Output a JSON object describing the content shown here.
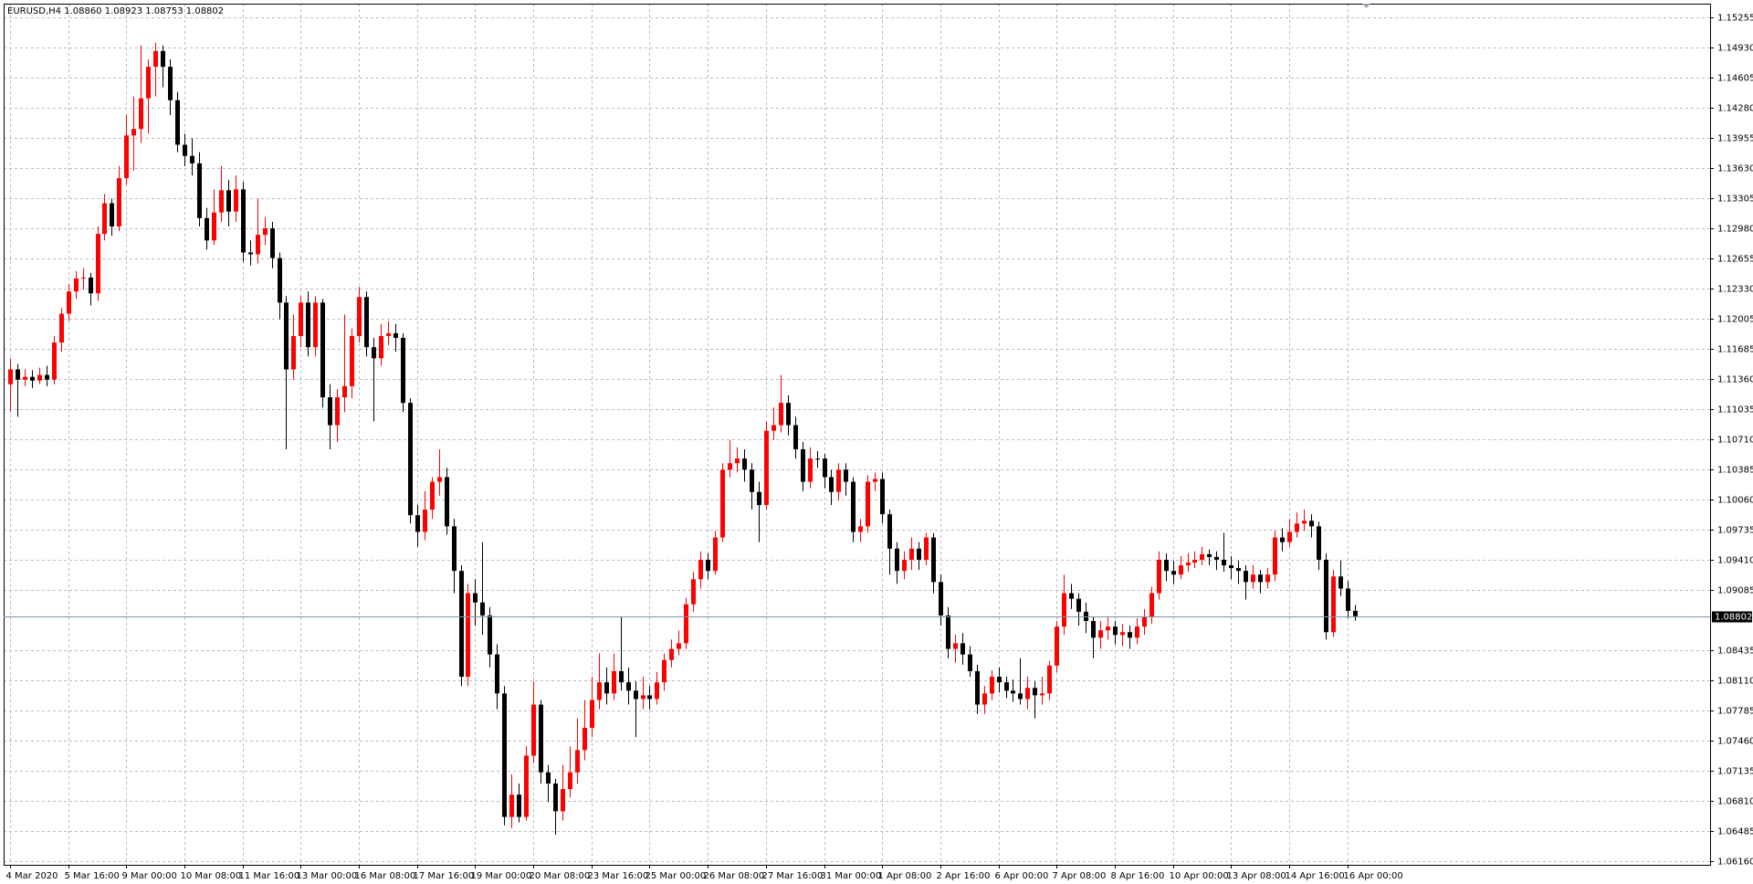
{
  "chart_data": {
    "type": "candlestick",
    "title": "EURUSD,H4  1.08860 1.08923 1.08753 1.08802",
    "categories": [
      "4 Mar 2020",
      null,
      null,
      null,
      null,
      null,
      null,
      null,
      "5 Mar 16:00",
      null,
      null,
      null,
      null,
      null,
      null,
      null,
      "9 Mar 00:00",
      null,
      null,
      null,
      null,
      null,
      null,
      null,
      "10 Mar 08:00",
      null,
      null,
      null,
      null,
      null,
      null,
      null,
      "11 Mar 16:00",
      null,
      null,
      null,
      null,
      null,
      null,
      null,
      "13 Mar 00:00",
      null,
      null,
      null,
      null,
      null,
      null,
      null,
      "16 Mar 08:00",
      null,
      null,
      null,
      null,
      null,
      null,
      null,
      "17 Mar 16:00",
      null,
      null,
      null,
      null,
      null,
      null,
      null,
      "19 Mar 00:00",
      null,
      null,
      null,
      null,
      null,
      null,
      null,
      "20 Mar 08:00",
      null,
      null,
      null,
      null,
      null,
      null,
      null,
      "23 Mar 16:00",
      null,
      null,
      null,
      null,
      null,
      null,
      null,
      "25 Mar 00:00",
      null,
      null,
      null,
      null,
      null,
      null,
      null,
      "26 Mar 08:00",
      null,
      null,
      null,
      null,
      null,
      null,
      null,
      "27 Mar 16:00",
      null,
      null,
      null,
      null,
      null,
      null,
      null,
      "31 Mar 00:00",
      null,
      null,
      null,
      null,
      null,
      null,
      null,
      "1 Apr 08:00",
      null,
      null,
      null,
      null,
      null,
      null,
      null,
      "2 Apr 16:00",
      null,
      null,
      null,
      null,
      null,
      null,
      null,
      "6 Apr 00:00",
      null,
      null,
      null,
      null,
      null,
      null,
      null,
      "7 Apr 08:00",
      null,
      null,
      null,
      null,
      null,
      null,
      null,
      "8 Apr 16:00",
      null,
      null,
      null,
      null,
      null,
      null,
      null,
      "10 Apr 00:00",
      null,
      null,
      null,
      null,
      null,
      null,
      null,
      "13 Apr 08:00",
      null,
      null,
      null,
      null,
      null,
      null,
      null,
      "14 Apr 16:00",
      null,
      null,
      null,
      null,
      null,
      null,
      null,
      "16 Apr 00:00",
      null
    ],
    "open": [
      1.113,
      1.1146,
      1.1135,
      1.1138,
      1.1134,
      1.114,
      1.1135,
      1.1175,
      1.1206,
      1.123,
      1.1244,
      1.1245,
      1.1228,
      1.1292,
      1.1325,
      1.13,
      1.1352,
      1.1398,
      1.1405,
      1.1438,
      1.1472,
      1.1489,
      1.1472,
      1.1436,
      1.1388,
      1.1376,
      1.1368,
      1.1309,
      1.1285,
      1.1315,
      1.1339,
      1.1316,
      1.134,
      1.1272,
      1.127,
      1.1291,
      1.1298,
      1.1266,
      1.1218,
      1.1146,
      1.1182,
      1.1218,
      1.117,
      1.1218,
      1.1116,
      1.1086,
      1.1116,
      1.1128,
      1.1182,
      1.1224,
      1.117,
      1.1158,
      1.1182,
      1.1185,
      1.118,
      1.111,
      1.0989,
      1.0971,
      1.0995,
      1.1025,
      1.103,
      1.0977,
      1.0929,
      1.0815,
      1.0905,
      1.0895,
      1.0881,
      1.0839,
      1.0797,
      1.0664,
      1.0688,
      1.0664,
      1.073,
      1.0785,
      1.0712,
      1.07,
      1.067,
      1.0694,
      1.0712,
      1.0736,
      1.076,
      1.079,
      1.0809,
      1.0797,
      1.0821,
      1.0809,
      1.08,
      1.0791,
      1.0795,
      1.0791,
      1.0809,
      1.0833,
      1.0845,
      1.0851,
      1.0893,
      1.092,
      1.0941,
      1.0929,
      1.0965,
      1.1038,
      1.1045,
      1.105,
      1.1038,
      1.1014,
      1.1,
      1.108,
      1.1086,
      1.111,
      1.1086,
      1.106,
      1.1025,
      1.105,
      1.105,
      1.103,
      1.1014,
      1.1038,
      1.1025,
      1.0971,
      1.0977,
      1.1025,
      1.1028,
      1.099,
      1.0953,
      1.0929,
      1.0941,
      1.0953,
      1.0941,
      1.0965,
      1.0917,
      1.0881,
      1.0845,
      1.0851,
      1.0839,
      1.0821,
      1.0785,
      1.0797,
      1.0815,
      1.0809,
      1.08,
      1.0797,
      1.0791,
      1.0803,
      1.0795,
      1.0797,
      1.0827,
      1.0869,
      1.0905,
      1.0899,
      1.0885,
      1.0875,
      1.0857,
      1.0865,
      1.0869,
      1.086,
      1.0863,
      1.0857,
      1.0869,
      1.088,
      1.0905,
      1.0941,
      1.0929,
      1.0925,
      1.0935,
      1.0938,
      1.0941,
      1.0947,
      1.0944,
      1.0941,
      1.0935,
      1.0932,
      1.0929,
      1.0917,
      1.0925,
      1.0917,
      1.0925,
      1.0965,
      1.096,
      1.0971,
      1.098,
      1.0983,
      1.0977,
      1.0941,
      1.0863,
      1.0923,
      1.091,
      1.0886
    ],
    "high": [
      1.1158,
      1.1152,
      1.1146,
      1.1145,
      1.1148,
      1.115,
      1.1182,
      1.1212,
      1.1238,
      1.1252,
      1.1255,
      1.125,
      1.13,
      1.1335,
      1.133,
      1.1365,
      1.142,
      1.144,
      1.1495,
      1.148,
      1.1498,
      1.1495,
      1.148,
      1.1445,
      1.14,
      1.1395,
      1.138,
      1.132,
      1.134,
      1.1365,
      1.135,
      1.1355,
      1.1348,
      1.1285,
      1.133,
      1.131,
      1.1305,
      1.1272,
      1.1225,
      1.1205,
      1.1225,
      1.123,
      1.1225,
      1.1222,
      1.113,
      1.1125,
      1.1205,
      1.119,
      1.1235,
      1.123,
      1.118,
      1.1195,
      1.1198,
      1.1195,
      1.1185,
      1.1115,
      1.1,
      1.1015,
      1.103,
      1.106,
      1.104,
      1.0985,
      1.0935,
      1.0915,
      1.092,
      1.096,
      1.089,
      1.085,
      1.0805,
      1.071,
      1.07,
      1.074,
      1.081,
      1.079,
      1.072,
      1.0705,
      1.072,
      1.074,
      1.077,
      1.079,
      1.0815,
      1.084,
      1.0825,
      1.084,
      1.088,
      1.0825,
      1.081,
      1.0815,
      1.0805,
      1.082,
      1.084,
      1.0855,
      1.0865,
      1.09,
      1.0928,
      1.095,
      1.0948,
      1.0972,
      1.1045,
      1.107,
      1.1062,
      1.106,
      1.1045,
      1.1025,
      1.109,
      1.1105,
      1.114,
      1.1118,
      1.1095,
      1.1068,
      1.1062,
      1.1058,
      1.1055,
      1.1038,
      1.1045,
      1.1045,
      1.103,
      1.0985,
      1.1032,
      1.1035,
      1.1035,
      1.0995,
      1.096,
      1.095,
      1.0965,
      1.096,
      1.097,
      1.097,
      1.0925,
      1.089,
      1.086,
      1.0862,
      1.0848,
      1.0828,
      1.0805,
      1.0822,
      1.0825,
      1.0815,
      1.0812,
      1.0835,
      1.0815,
      1.081,
      1.0815,
      1.0832,
      1.0875,
      1.0925,
      1.0915,
      1.0905,
      1.0895,
      1.088,
      1.0875,
      1.088,
      1.0875,
      1.0872,
      1.087,
      1.0878,
      1.0888,
      1.0912,
      1.095,
      1.0948,
      1.094,
      1.0945,
      1.0948,
      1.095,
      1.0955,
      1.0952,
      1.095,
      1.097,
      1.0945,
      1.094,
      1.0935,
      1.0935,
      1.093,
      1.0932,
      1.0972,
      1.0975,
      1.0985,
      1.0992,
      1.0995,
      1.099,
      1.0982,
      1.0948,
      1.093,
      1.094,
      1.0918,
      1.08923
    ],
    "low": [
      1.11,
      1.1095,
      1.1128,
      1.1126,
      1.113,
      1.1128,
      1.113,
      1.1165,
      1.1198,
      1.1222,
      1.1232,
      1.1215,
      1.122,
      1.1285,
      1.129,
      1.1295,
      1.1345,
      1.136,
      1.139,
      1.14,
      1.144,
      1.145,
      1.142,
      1.138,
      1.1365,
      1.1355,
      1.13,
      1.1275,
      1.128,
      1.1305,
      1.13,
      1.1305,
      1.1262,
      1.1258,
      1.126,
      1.128,
      1.1255,
      1.12,
      1.106,
      1.1135,
      1.117,
      1.116,
      1.116,
      1.1105,
      1.106,
      1.1068,
      1.11,
      1.1115,
      1.1175,
      1.116,
      1.109,
      1.115,
      1.1172,
      1.1165,
      1.11,
      1.098,
      1.0955,
      1.0962,
      1.0985,
      1.101,
      1.0968,
      1.0905,
      1.0805,
      1.0805,
      1.087,
      1.086,
      1.0825,
      1.078,
      1.0655,
      1.0652,
      1.0658,
      1.066,
      1.0722,
      1.07,
      1.068,
      1.0645,
      1.066,
      1.0685,
      1.07,
      1.0725,
      1.075,
      1.078,
      1.0785,
      1.079,
      1.08,
      1.0785,
      1.075,
      1.078,
      1.078,
      1.0785,
      1.08,
      1.0825,
      1.0838,
      1.0845,
      1.0885,
      1.091,
      1.092,
      1.0925,
      1.096,
      1.103,
      1.1035,
      1.1025,
      1.0995,
      1.096,
      1.0995,
      1.107,
      1.1078,
      1.1075,
      1.105,
      1.1015,
      1.1018,
      1.104,
      1.1018,
      1.1,
      1.1005,
      1.101,
      1.096,
      1.096,
      1.097,
      1.1015,
      1.098,
      1.0925,
      1.0915,
      1.092,
      1.093,
      1.093,
      1.0935,
      1.0905,
      1.087,
      1.0835,
      1.083,
      1.0828,
      1.0815,
      1.0775,
      1.0775,
      1.079,
      1.0798,
      1.0792,
      1.0788,
      1.0785,
      1.078,
      1.077,
      1.0785,
      1.079,
      1.082,
      1.086,
      1.0888,
      1.087,
      1.0862,
      1.0835,
      1.0845,
      1.0855,
      1.085,
      1.0848,
      1.0845,
      1.085,
      1.086,
      1.0872,
      1.0898,
      1.0918,
      1.0915,
      1.092,
      1.0928,
      1.0932,
      1.0935,
      1.0935,
      1.093,
      1.0928,
      1.092,
      1.0915,
      1.0898,
      1.091,
      1.0905,
      1.091,
      1.0918,
      1.095,
      1.0955,
      1.0965,
      1.0972,
      1.0965,
      1.093,
      1.0855,
      1.0858,
      1.0902,
      1.0878,
      1.08753
    ],
    "close": [
      1.1146,
      1.1135,
      1.1138,
      1.1134,
      1.114,
      1.1135,
      1.1175,
      1.1206,
      1.123,
      1.1244,
      1.1245,
      1.1228,
      1.1292,
      1.1325,
      1.13,
      1.1352,
      1.1398,
      1.1405,
      1.1438,
      1.1472,
      1.1489,
      1.1472,
      1.1436,
      1.1388,
      1.1376,
      1.1368,
      1.1309,
      1.1285,
      1.1315,
      1.1339,
      1.1316,
      1.134,
      1.1272,
      1.127,
      1.1291,
      1.1298,
      1.1266,
      1.1218,
      1.1146,
      1.1182,
      1.1218,
      1.117,
      1.1218,
      1.1116,
      1.1086,
      1.1116,
      1.1128,
      1.1182,
      1.1224,
      1.117,
      1.1158,
      1.1182,
      1.1185,
      1.118,
      1.111,
      1.0989,
      1.0971,
      1.0995,
      1.1025,
      1.103,
      1.0977,
      1.0929,
      1.0815,
      1.0905,
      1.0895,
      1.0881,
      1.0839,
      1.0797,
      1.0664,
      1.0688,
      1.0664,
      1.073,
      1.0785,
      1.0712,
      1.07,
      1.067,
      1.0694,
      1.0712,
      1.0736,
      1.076,
      1.079,
      1.0809,
      1.0797,
      1.0821,
      1.0809,
      1.08,
      1.0791,
      1.0795,
      1.0791,
      1.0809,
      1.0833,
      1.0845,
      1.0851,
      1.0893,
      1.092,
      1.0941,
      1.0929,
      1.0965,
      1.1038,
      1.1045,
      1.105,
      1.1038,
      1.1014,
      1.1,
      1.108,
      1.1086,
      1.111,
      1.1086,
      1.106,
      1.1025,
      1.105,
      1.105,
      1.103,
      1.1014,
      1.1038,
      1.1025,
      1.0971,
      1.0977,
      1.1025,
      1.1028,
      1.099,
      1.0953,
      1.0929,
      1.0941,
      1.0953,
      1.0941,
      1.0965,
      1.0917,
      1.0881,
      1.0845,
      1.0851,
      1.0839,
      1.0821,
      1.0785,
      1.0797,
      1.0815,
      1.0809,
      1.08,
      1.0797,
      1.0791,
      1.0803,
      1.0795,
      1.0797,
      1.0827,
      1.0869,
      1.0905,
      1.0899,
      1.0885,
      1.0875,
      1.0857,
      1.0865,
      1.0869,
      1.086,
      1.0863,
      1.0857,
      1.0869,
      1.088,
      1.0905,
      1.0941,
      1.0929,
      1.0925,
      1.0935,
      1.0938,
      1.0941,
      1.0947,
      1.0944,
      1.0941,
      1.0935,
      1.0932,
      1.0929,
      1.0917,
      1.0925,
      1.0917,
      1.0925,
      1.0965,
      1.096,
      1.0971,
      1.098,
      1.0983,
      1.0977,
      1.0941,
      1.0863,
      1.0923,
      1.091,
      1.0886,
      1.08802
    ],
    "up_color": "#ff0000",
    "down_color": "#000000",
    "bid": 1.08802,
    "ylim": [
      1.06124,
      1.154
    ],
    "yticks": [
      {
        "value": 1.0616,
        "label": "1.06160"
      },
      1.06485,
      {
        "value": 1.0681,
        "label": "1.06810"
      },
      1.07135,
      {
        "value": 1.0746,
        "label": "1.07460"
      },
      1.07785,
      {
        "value": 1.0811,
        "label": "1.08110"
      },
      1.08435,
      1.09085,
      {
        "value": 1.0941,
        "label": "1.09410"
      },
      1.09735,
      {
        "value": 1.1006,
        "label": "1.10060"
      },
      1.10385,
      {
        "value": 1.1071,
        "label": "1.10710"
      },
      1.11035,
      {
        "value": 1.1136,
        "label": "1.11360"
      },
      1.11685,
      1.12005,
      {
        "value": 1.1233,
        "label": "1.12330"
      },
      1.12655,
      {
        "value": 1.1298,
        "label": "1.12980"
      },
      1.13305,
      {
        "value": 1.1363,
        "label": "1.13630"
      },
      1.13955,
      {
        "value": 1.1428,
        "label": "1.14280"
      },
      1.14605,
      {
        "value": 1.1493,
        "label": "1.14930"
      },
      1.15255
    ],
    "grid": true
  }
}
